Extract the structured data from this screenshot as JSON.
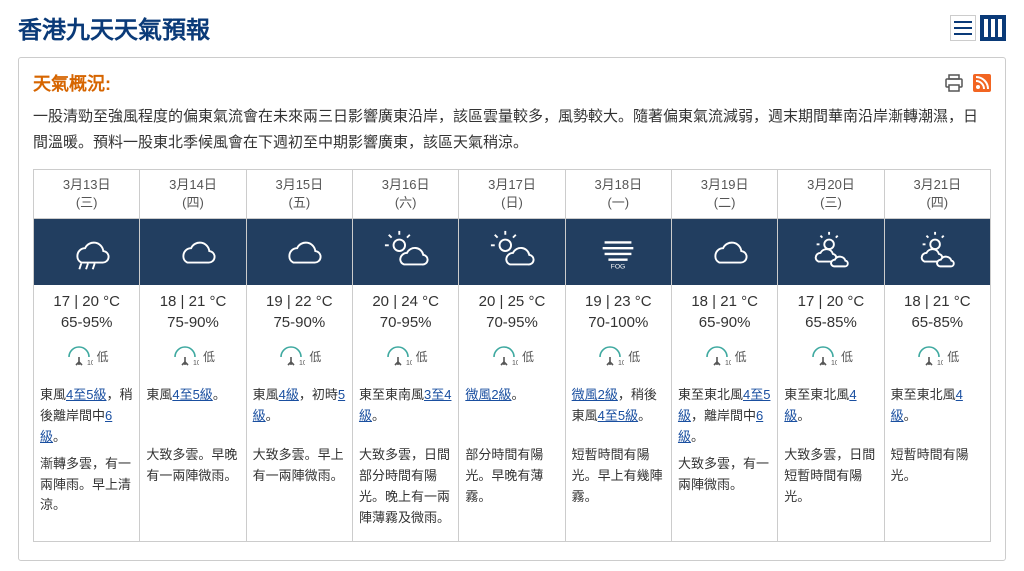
{
  "page_title": "香港九天天氣預報",
  "summary_label": "天氣概況:",
  "summary_text": "一股清勁至強風程度的偏東氣流會在未來兩三日影響廣東沿岸，該區雲量較多，風勢較大。隨著偏東氣流減弱，週末期間華南沿岸漸轉潮濕，日間溫暖。預料一股東北季候風會在下週初至中期影響廣東，該區天氣稍涼。",
  "colors": {
    "header_blue": "#0a3a78",
    "icon_bg": "#223e60",
    "accent_orange": "#d66500",
    "link_blue": "#1a4fa0",
    "border": "#cccccc",
    "psr_teal": "#3fa9a0",
    "rss_orange": "#f26522"
  },
  "days": [
    {
      "date": "3月13日",
      "dow": "(三)",
      "icon": "rain",
      "temp": "17 | 20 °C",
      "humid": "65-95%",
      "psr": "低",
      "wind_pre": "東風",
      "wind_link": "4至5級",
      "wind_mid": "，稍後離岸間中",
      "wind_link2": "6級",
      "wind_post": "。",
      "weather": "漸轉多雲，有一兩陣雨。早上清涼。"
    },
    {
      "date": "3月14日",
      "dow": "(四)",
      "icon": "cloud",
      "temp": "18 | 21 °C",
      "humid": "75-90%",
      "psr": "低",
      "wind_pre": "東風",
      "wind_link": "4至5級",
      "wind_mid": "",
      "wind_link2": "",
      "wind_post": "。",
      "weather": "大致多雲。早晚有一兩陣微雨。"
    },
    {
      "date": "3月15日",
      "dow": "(五)",
      "icon": "cloud",
      "temp": "19 | 22 °C",
      "humid": "75-90%",
      "psr": "低",
      "wind_pre": "東風",
      "wind_link": "4級",
      "wind_mid": "，初時",
      "wind_link2": "5級",
      "wind_post": "。",
      "weather": "大致多雲。早上有一兩陣微雨。"
    },
    {
      "date": "3月16日",
      "dow": "(六)",
      "icon": "suncloud",
      "temp": "20 | 24 °C",
      "humid": "70-95%",
      "psr": "低",
      "wind_pre": "東至東南風",
      "wind_link": "3至4級",
      "wind_mid": "",
      "wind_link2": "",
      "wind_post": "。",
      "weather": "大致多雲，日間部分時間有陽光。晚上有一兩陣薄霧及微雨。"
    },
    {
      "date": "3月17日",
      "dow": "(日)",
      "icon": "suncloud",
      "temp": "20 | 25 °C",
      "humid": "70-95%",
      "psr": "低",
      "wind_pre": "",
      "wind_link": "微風2級",
      "wind_mid": "",
      "wind_link2": "",
      "wind_post": "。",
      "weather": "部分時間有陽光。早晚有薄霧。"
    },
    {
      "date": "3月18日",
      "dow": "(一)",
      "icon": "fog",
      "temp": "19 | 23 °C",
      "humid": "70-100%",
      "psr": "低",
      "wind_pre": "",
      "wind_link": "微風2級",
      "wind_mid": "，稍後東風",
      "wind_link2": "4至5級",
      "wind_post": "。",
      "weather": "短暫時間有陽光。早上有幾陣霧。"
    },
    {
      "date": "3月19日",
      "dow": "(二)",
      "icon": "cloud",
      "temp": "18 | 21 °C",
      "humid": "65-90%",
      "psr": "低",
      "wind_pre": "東至東北風",
      "wind_link": "4至5級",
      "wind_mid": "，離岸間中",
      "wind_link2": "6級",
      "wind_post": "。",
      "weather": "大致多雲，有一兩陣微雨。"
    },
    {
      "date": "3月20日",
      "dow": "(三)",
      "icon": "sunclouds",
      "temp": "17 | 20 °C",
      "humid": "65-85%",
      "psr": "低",
      "wind_pre": "東至東北風",
      "wind_link": "4級",
      "wind_mid": "",
      "wind_link2": "",
      "wind_post": "。",
      "weather": "大致多雲，日間短暫時間有陽光。"
    },
    {
      "date": "3月21日",
      "dow": "(四)",
      "icon": "sunclouds",
      "temp": "18 | 21 °C",
      "humid": "65-85%",
      "psr": "低",
      "wind_pre": "東至東北風",
      "wind_link": "4級",
      "wind_mid": "",
      "wind_link2": "",
      "wind_post": "。",
      "weather": "短暫時間有陽光。"
    }
  ]
}
